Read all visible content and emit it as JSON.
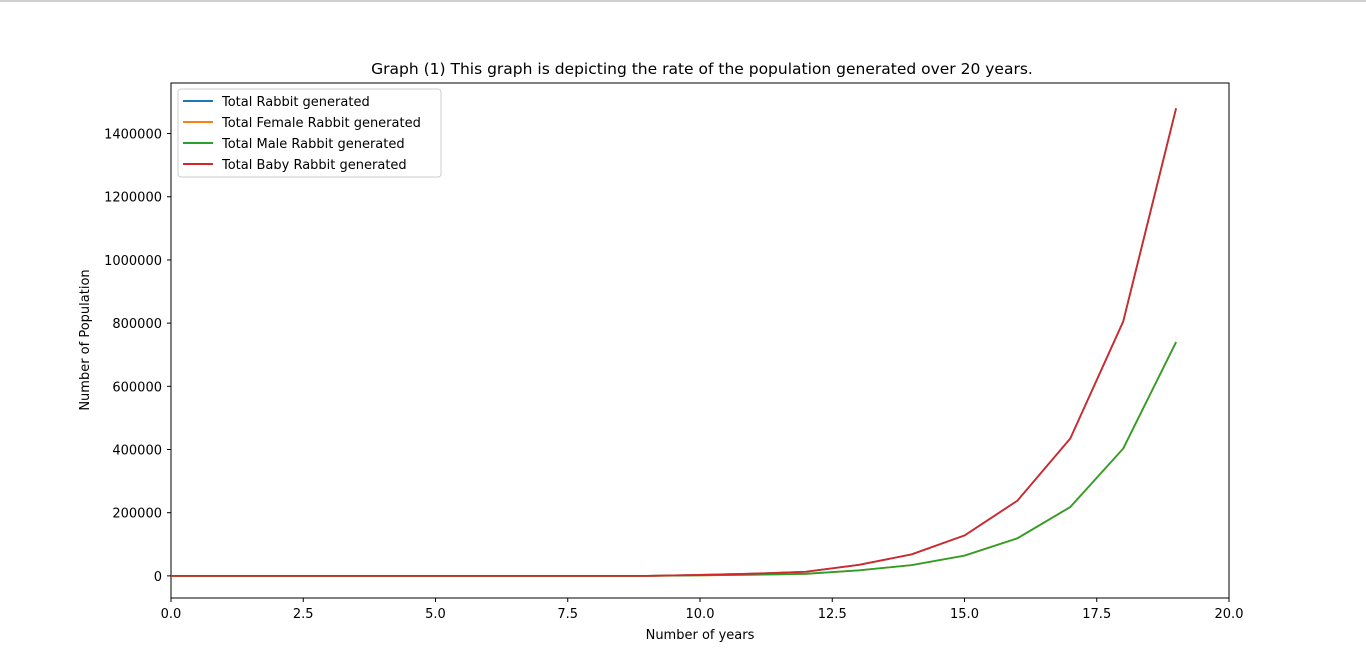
{
  "chart_data": {
    "type": "line",
    "title": "Graph (1) This graph is depicting the rate of the population generated over 20 years.",
    "xlabel": "Number of years",
    "ylabel": "Number of Population",
    "xlim": [
      0,
      20
    ],
    "ylim": [
      -70000,
      1560000
    ],
    "x_ticks": [
      0.0,
      2.5,
      5.0,
      7.5,
      10.0,
      12.5,
      15.0,
      17.5,
      20.0
    ],
    "x_tick_labels": [
      "0.0",
      "2.5",
      "5.0",
      "7.5",
      "10.0",
      "12.5",
      "15.0",
      "17.5",
      "20.0"
    ],
    "y_ticks": [
      0,
      200000,
      400000,
      600000,
      800000,
      1000000,
      1200000,
      1400000
    ],
    "y_tick_labels": [
      "0",
      "200000",
      "400000",
      "600000",
      "800000",
      "1000000",
      "1200000",
      "1400000"
    ],
    "grid": false,
    "legend_position": "top-left",
    "x": [
      0,
      1,
      2,
      3,
      4,
      5,
      6,
      7,
      8,
      9,
      10,
      11,
      12,
      13,
      14,
      15,
      16,
      17,
      18,
      19
    ],
    "series": [
      {
        "name": "Total Rabbit generated",
        "color": "#1f77b4",
        "values": [
          2,
          3,
          4,
          6,
          9,
          14,
          22,
          35,
          60,
          150,
          3000,
          7000,
          13000,
          35000,
          68000,
          128000,
          238000,
          435000,
          805000,
          1480000
        ]
      },
      {
        "name": "Total Female Rabbit generated",
        "color": "#ff7f0e",
        "values": [
          1,
          2,
          2,
          3,
          5,
          7,
          11,
          18,
          30,
          75,
          1500,
          3500,
          6500,
          17500,
          34000,
          64000,
          119000,
          218000,
          403000,
          740000
        ]
      },
      {
        "name": "Total Male Rabbit generated",
        "color": "#2ca02c",
        "values": [
          1,
          2,
          2,
          3,
          5,
          7,
          11,
          18,
          30,
          75,
          1500,
          3500,
          6500,
          17500,
          34000,
          64000,
          119000,
          218000,
          403000,
          740000
        ]
      },
      {
        "name": "Total Baby Rabbit generated",
        "color": "#d62728",
        "values": [
          2,
          3,
          4,
          6,
          9,
          14,
          22,
          35,
          60,
          150,
          3000,
          7000,
          13000,
          35000,
          68000,
          128000,
          238000,
          435000,
          805000,
          1480000
        ]
      }
    ]
  }
}
